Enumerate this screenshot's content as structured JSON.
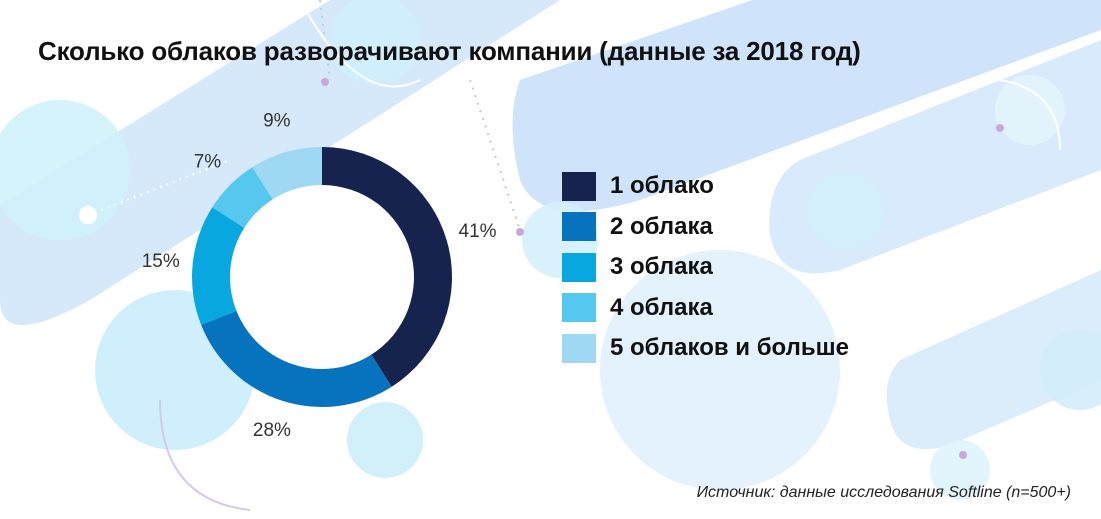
{
  "colors": {
    "series": [
      "#16234f",
      "#0673be",
      "#09a7e0",
      "#54c8ef",
      "#9ed8f2"
    ],
    "background_shape": "#cfe6fb",
    "background_bubble": "#cfeefb"
  },
  "chart_data": {
    "type": "pie",
    "title": "Сколько облаков разворачивают компании (данные за 2018 год)",
    "source": "Источник: данные исследования Softline (n=500+)",
    "categories": [
      "1 облако",
      "2 облака",
      "3 облака",
      "4 облака",
      "5 облаков и больше"
    ],
    "values": [
      41,
      28,
      15,
      7,
      9
    ],
    "labels": [
      "41%",
      "28%",
      "15%",
      "7%",
      "9%"
    ],
    "legend": "right"
  }
}
